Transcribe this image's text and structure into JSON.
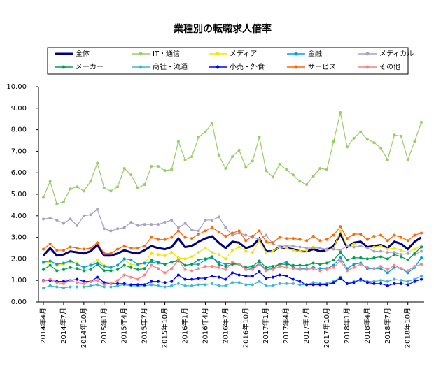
{
  "chart_data": {
    "type": "line",
    "title": "業種別の転職求人倍率",
    "categories": [
      "2014年4月",
      null,
      null,
      "2014年7月",
      null,
      null,
      "2014年10月",
      null,
      null,
      "2015年1月",
      null,
      null,
      "2015年4月",
      null,
      null,
      "2015年7月",
      null,
      null,
      "2015年10月",
      null,
      null,
      "2016年1月",
      null,
      null,
      "2016年4月",
      null,
      null,
      "2016年7月",
      null,
      null,
      "2016年10月",
      null,
      null,
      "2017年1月",
      null,
      null,
      "2017年4月",
      null,
      null,
      "2017年7月",
      null,
      null,
      "2017年10月",
      null,
      null,
      "2018年1月",
      null,
      null,
      "2018年4月",
      null,
      null,
      "2018年7月",
      null,
      null,
      "2018年10月",
      null,
      null
    ],
    "ylim": [
      0,
      10
    ],
    "yticks": [
      {
        "value": 0,
        "label": "0.00"
      },
      {
        "value": 1,
        "label": "1.00"
      },
      {
        "value": 2,
        "label": "2.00"
      },
      {
        "value": 3,
        "label": "3.00"
      },
      {
        "value": 4,
        "label": "4.00"
      },
      {
        "value": 5,
        "label": "5.00"
      },
      {
        "value": 6,
        "label": "6.00"
      },
      {
        "value": 7,
        "label": "7.00"
      },
      {
        "value": 8,
        "label": "8.00"
      },
      {
        "value": 9,
        "label": "9.00"
      },
      {
        "value": 10,
        "label": "10.00"
      }
    ],
    "grid": false,
    "series": [
      {
        "name": "全体",
        "color": "#000080",
        "values": [
          2.15,
          2.5,
          2.15,
          2.2,
          2.35,
          2.3,
          2.25,
          2.35,
          2.65,
          2.15,
          2.15,
          2.25,
          2.4,
          2.3,
          2.25,
          2.4,
          2.6,
          2.5,
          2.45,
          2.55,
          2.95,
          2.55,
          2.6,
          2.8,
          2.95,
          3.05,
          2.75,
          2.5,
          2.8,
          2.75,
          2.5,
          2.6,
          2.95,
          2.35,
          2.35,
          2.55,
          2.5,
          2.45,
          2.35,
          2.35,
          2.45,
          2.35,
          2.4,
          2.6,
          3.15,
          2.55,
          2.75,
          2.8,
          2.55,
          2.6,
          2.65,
          2.5,
          2.8,
          2.7,
          2.45,
          2.8,
          3.0
        ]
      },
      {
        "name": "IT・通信",
        "color": "#99cc66",
        "values": [
          4.85,
          5.6,
          4.55,
          4.65,
          5.25,
          5.35,
          5.15,
          5.6,
          6.45,
          5.3,
          5.15,
          5.35,
          6.2,
          5.9,
          5.3,
          5.45,
          6.3,
          6.3,
          6.1,
          6.15,
          7.45,
          6.6,
          6.75,
          7.65,
          7.9,
          8.3,
          6.8,
          6.2,
          6.75,
          7.05,
          6.25,
          6.55,
          7.65,
          6.1,
          5.8,
          6.4,
          6.15,
          5.9,
          5.6,
          5.45,
          5.85,
          6.2,
          6.15,
          7.45,
          8.8,
          7.2,
          7.6,
          7.9,
          7.55,
          7.4,
          7.15,
          6.6,
          7.75,
          7.7,
          6.6,
          7.45,
          8.35
        ]
      },
      {
        "name": "メディア",
        "color": "#f2e600",
        "values": [
          1.8,
          1.85,
          1.7,
          1.75,
          1.85,
          1.8,
          1.6,
          1.75,
          1.95,
          1.7,
          1.6,
          1.7,
          1.95,
          1.75,
          1.7,
          1.8,
          2.25,
          2.2,
          2.15,
          2.3,
          2.05,
          2.0,
          2.1,
          2.3,
          2.5,
          2.3,
          2.2,
          2.0,
          2.4,
          2.55,
          2.35,
          2.3,
          2.85,
          2.3,
          2.35,
          2.55,
          2.5,
          2.4,
          2.35,
          2.4,
          2.55,
          2.5,
          2.4,
          2.5,
          3.3,
          2.6,
          2.7,
          2.6,
          2.5,
          2.55,
          2.6,
          2.45,
          2.5,
          2.4,
          2.3,
          2.45,
          2.6
        ]
      },
      {
        "name": "金融",
        "color": "#00a0e0",
        "values": [
          1.85,
          1.9,
          1.75,
          1.8,
          1.9,
          1.75,
          1.6,
          1.7,
          1.8,
          1.65,
          1.6,
          1.7,
          2.0,
          1.95,
          1.75,
          1.8,
          1.85,
          1.8,
          1.75,
          1.85,
          1.9,
          1.7,
          1.75,
          1.75,
          1.95,
          2.05,
          1.85,
          1.75,
          1.8,
          1.75,
          1.5,
          1.55,
          1.8,
          1.5,
          1.55,
          1.75,
          1.85,
          1.6,
          1.55,
          1.55,
          1.6,
          1.55,
          1.55,
          1.7,
          2.05,
          1.55,
          1.75,
          1.8,
          1.55,
          1.55,
          1.55,
          1.35,
          1.6,
          1.55,
          1.35,
          1.6,
          2.05
        ]
      },
      {
        "name": "メディカル",
        "color": "#a8a0c8",
        "values": [
          3.85,
          3.9,
          3.8,
          3.65,
          3.85,
          3.55,
          4.0,
          4.05,
          4.3,
          3.4,
          3.3,
          3.4,
          3.45,
          3.7,
          3.55,
          3.6,
          3.6,
          3.6,
          3.7,
          3.8,
          3.45,
          3.65,
          3.35,
          3.3,
          3.8,
          3.8,
          3.95,
          3.45,
          3.1,
          3.2,
          3.1,
          3.0,
          2.9,
          3.1,
          2.7,
          2.6,
          2.6,
          2.6,
          2.55,
          2.5,
          2.5,
          2.5,
          2.45,
          2.45,
          2.4,
          2.6,
          2.55,
          2.6,
          2.5,
          2.35,
          2.35,
          2.3,
          2.3,
          2.2,
          2.25,
          2.2,
          2.35
        ]
      },
      {
        "name": "メーカー",
        "color": "#00a050",
        "values": [
          1.5,
          1.7,
          1.45,
          1.5,
          1.6,
          1.55,
          1.45,
          1.5,
          1.75,
          1.45,
          1.45,
          1.5,
          1.7,
          1.6,
          1.5,
          1.55,
          1.95,
          1.85,
          1.75,
          1.85,
          1.95,
          1.7,
          1.75,
          1.95,
          2.0,
          2.1,
          1.75,
          1.65,
          1.75,
          1.75,
          1.6,
          1.65,
          1.9,
          1.6,
          1.65,
          1.75,
          1.75,
          1.7,
          1.7,
          1.7,
          1.8,
          1.75,
          1.8,
          1.95,
          2.3,
          1.95,
          2.05,
          2.05,
          2.0,
          2.05,
          2.1,
          2.0,
          2.2,
          2.1,
          1.95,
          2.25,
          2.55
        ]
      },
      {
        "name": "商社・流通",
        "color": "#40b8c8",
        "values": [
          0.65,
          0.75,
          0.7,
          0.65,
          0.7,
          0.7,
          0.7,
          0.75,
          0.8,
          0.7,
          0.7,
          0.75,
          0.8,
          0.75,
          0.75,
          0.75,
          0.8,
          0.75,
          0.7,
          0.75,
          0.85,
          0.75,
          0.75,
          0.8,
          0.8,
          0.85,
          0.75,
          0.75,
          0.9,
          0.9,
          0.8,
          0.8,
          0.95,
          0.75,
          0.75,
          0.85,
          0.85,
          0.85,
          0.8,
          0.8,
          0.9,
          0.85,
          0.85,
          0.95,
          1.15,
          0.85,
          0.95,
          1.0,
          0.95,
          0.95,
          1.0,
          0.95,
          1.05,
          1.0,
          0.95,
          1.05,
          1.2
        ]
      },
      {
        "name": "小売・外食",
        "color": "#0000ff",
        "values": [
          1.0,
          1.0,
          0.95,
          0.95,
          1.0,
          1.05,
          0.95,
          0.95,
          1.15,
          0.9,
          0.85,
          0.85,
          0.85,
          0.8,
          0.8,
          0.8,
          0.95,
          0.95,
          0.9,
          0.95,
          1.25,
          1.05,
          1.05,
          1.1,
          1.1,
          1.2,
          1.15,
          1.05,
          1.35,
          1.25,
          1.2,
          1.2,
          1.4,
          1.1,
          1.15,
          1.25,
          1.2,
          1.05,
          0.95,
          0.8,
          0.8,
          0.8,
          0.8,
          0.9,
          1.1,
          0.85,
          0.9,
          1.05,
          0.9,
          0.85,
          0.85,
          0.75,
          0.85,
          0.85,
          0.8,
          0.95,
          1.05
        ]
      },
      {
        "name": "サービス",
        "color": "#ff6600",
        "values": [
          2.45,
          2.7,
          2.4,
          2.4,
          2.55,
          2.5,
          2.45,
          2.5,
          2.75,
          2.25,
          2.25,
          2.45,
          2.6,
          2.5,
          2.5,
          2.6,
          3.0,
          2.9,
          2.9,
          3.0,
          3.3,
          3.0,
          2.95,
          3.15,
          3.3,
          3.45,
          3.25,
          3.05,
          3.2,
          3.3,
          2.85,
          3.05,
          3.3,
          2.8,
          2.75,
          3.0,
          2.95,
          2.95,
          2.9,
          2.85,
          3.05,
          2.85,
          2.9,
          3.1,
          3.5,
          2.95,
          3.15,
          3.15,
          2.9,
          3.05,
          3.1,
          2.85,
          3.1,
          3.0,
          2.85,
          3.1,
          3.2
        ]
      },
      {
        "name": "その他",
        "color": "#ff8080",
        "values": [
          0.95,
          1.05,
          0.9,
          0.85,
          1.0,
          0.9,
          0.85,
          0.95,
          1.0,
          0.8,
          0.85,
          1.0,
          1.25,
          1.15,
          1.05,
          1.25,
          1.7,
          1.55,
          1.35,
          1.55,
          1.95,
          1.5,
          1.45,
          1.55,
          1.65,
          1.65,
          1.6,
          1.5,
          1.85,
          1.75,
          1.5,
          1.5,
          1.75,
          1.45,
          1.5,
          1.65,
          1.6,
          1.55,
          1.5,
          1.5,
          1.55,
          1.45,
          1.5,
          1.6,
          1.9,
          1.45,
          1.6,
          1.75,
          1.6,
          1.55,
          1.65,
          1.5,
          1.7,
          1.55,
          1.45,
          1.65,
          1.75
        ]
      }
    ]
  }
}
